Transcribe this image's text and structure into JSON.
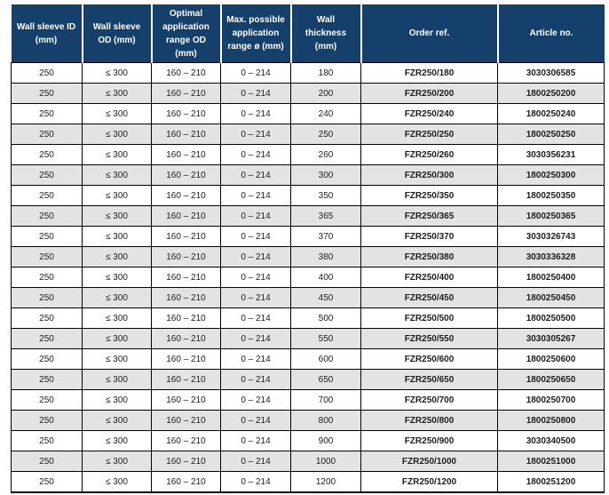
{
  "colors": {
    "header_bg": "#14406b",
    "header_text": "#ffffff",
    "row_alt_bg": "#e3e3e3",
    "border": "#000000",
    "body_text": "#1d1d1b"
  },
  "table": {
    "columns": [
      "Wall sleeve ID (mm)",
      "Wall sleeve OD (mm)",
      "Optimal application range OD (mm)",
      "Max. possible application range ø (mm)",
      "Wall thickness (mm)",
      "Order ref.",
      "Article no."
    ],
    "rows": [
      [
        "250",
        "≤ 300",
        "160 – 210",
        "0 – 214",
        "180",
        "FZR250/180",
        "3030306585"
      ],
      [
        "250",
        "≤ 300",
        "160 – 210",
        "0 – 214",
        "200",
        "FZR250/200",
        "1800250200"
      ],
      [
        "250",
        "≤ 300",
        "160 – 210",
        "0 – 214",
        "240",
        "FZR250/240",
        "1800250240"
      ],
      [
        "250",
        "≤ 300",
        "160 – 210",
        "0 – 214",
        "250",
        "FZR250/250",
        "1800250250"
      ],
      [
        "250",
        "≤ 300",
        "160 – 210",
        "0 – 214",
        "260",
        "FZR250/260",
        "3030356231"
      ],
      [
        "250",
        "≤ 300",
        "160 – 210",
        "0 – 214",
        "300",
        "FZR250/300",
        "1800250300"
      ],
      [
        "250",
        "≤ 300",
        "160 – 210",
        "0 – 214",
        "350",
        "FZR250/350",
        "1800250350"
      ],
      [
        "250",
        "≤ 300",
        "160 – 210",
        "0 – 214",
        "365",
        "FZR250/365",
        "1800250365"
      ],
      [
        "250",
        "≤ 300",
        "160 – 210",
        "0 – 214",
        "370",
        "FZR250/370",
        "3030326743"
      ],
      [
        "250",
        "≤ 300",
        "160 – 210",
        "0 – 214",
        "380",
        "FZR250/380",
        "3030336328"
      ],
      [
        "250",
        "≤ 300",
        "160 – 210",
        "0 – 214",
        "400",
        "FZR250/400",
        "1800250400"
      ],
      [
        "250",
        "≤ 300",
        "160 – 210",
        "0 – 214",
        "450",
        "FZR250/450",
        "1800250450"
      ],
      [
        "250",
        "≤ 300",
        "160 – 210",
        "0 – 214",
        "500",
        "FZR250/500",
        "1800250500"
      ],
      [
        "250",
        "≤ 300",
        "160 – 210",
        "0 – 214",
        "550",
        "FZR250/550",
        "3030305267"
      ],
      [
        "250",
        "≤ 300",
        "160 – 210",
        "0 – 214",
        "600",
        "FZR250/600",
        "1800250600"
      ],
      [
        "250",
        "≤ 300",
        "160 – 210",
        "0 – 214",
        "650",
        "FZR250/650",
        "1800250650"
      ],
      [
        "250",
        "≤ 300",
        "160 – 210",
        "0 – 214",
        "700",
        "FZR250/700",
        "1800250700"
      ],
      [
        "250",
        "≤ 300",
        "160 – 210",
        "0 – 214",
        "800",
        "FZR250/800",
        "1800250800"
      ],
      [
        "250",
        "≤ 300",
        "160 – 210",
        "0 – 214",
        "900",
        "FZR250/900",
        "3030340500"
      ],
      [
        "250",
        "≤ 300",
        "160 – 210",
        "0 – 214",
        "1000",
        "FZR250/1000",
        "1800251000"
      ],
      [
        "250",
        "≤ 300",
        "160 – 210",
        "0 – 214",
        "1200",
        "FZR250/1200",
        "1800251200"
      ]
    ]
  }
}
